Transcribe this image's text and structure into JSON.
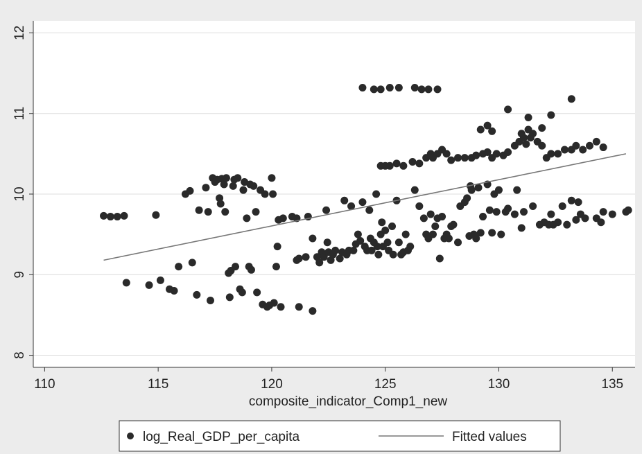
{
  "chart_data": {
    "type": "scatter",
    "title": "",
    "xlabel": "composite_indicator_Comp1_new",
    "ylabel": "",
    "xlim": [
      109.5,
      136
    ],
    "ylim": [
      7.85,
      12.15
    ],
    "xticks": [
      110,
      115,
      120,
      125,
      130,
      135
    ],
    "yticks": [
      8,
      9,
      10,
      11,
      12
    ],
    "grid": "horizontal",
    "legend_position": "bottom",
    "colors": {
      "points": "#2a2a2a",
      "fit_line": "#777777",
      "plot_bg": "#ffffff",
      "outer_bg": "#ececec",
      "grid": "#dcdcdc"
    },
    "series": [
      {
        "name": "log_Real_GDP_per_capita",
        "kind": "scatter",
        "points": [
          [
            112.6,
            9.73
          ],
          [
            112.9,
            9.72
          ],
          [
            113.2,
            9.72
          ],
          [
            113.5,
            9.73
          ],
          [
            113.6,
            8.9
          ],
          [
            114.6,
            8.87
          ],
          [
            114.9,
            9.74
          ],
          [
            115.1,
            8.93
          ],
          [
            115.5,
            8.82
          ],
          [
            115.7,
            8.8
          ],
          [
            115.9,
            9.1
          ],
          [
            116.2,
            10.0
          ],
          [
            116.4,
            10.04
          ],
          [
            116.5,
            9.15
          ],
          [
            116.7,
            8.75
          ],
          [
            116.8,
            9.8
          ],
          [
            117.1,
            10.08
          ],
          [
            117.2,
            9.78
          ],
          [
            117.3,
            8.68
          ],
          [
            117.4,
            10.2
          ],
          [
            117.5,
            10.15
          ],
          [
            117.6,
            10.18
          ],
          [
            117.7,
            9.95
          ],
          [
            117.75,
            9.88
          ],
          [
            117.8,
            10.19
          ],
          [
            117.9,
            10.12
          ],
          [
            117.95,
            9.78
          ],
          [
            118.0,
            10.2
          ],
          [
            118.1,
            9.02
          ],
          [
            118.15,
            8.72
          ],
          [
            118.2,
            9.05
          ],
          [
            118.3,
            10.1
          ],
          [
            118.35,
            10.18
          ],
          [
            118.4,
            9.1
          ],
          [
            118.5,
            10.2
          ],
          [
            118.6,
            8.82
          ],
          [
            118.7,
            8.78
          ],
          [
            118.75,
            10.05
          ],
          [
            118.8,
            10.15
          ],
          [
            118.9,
            9.7
          ],
          [
            119.0,
            9.1
          ],
          [
            119.05,
            10.12
          ],
          [
            119.1,
            9.06
          ],
          [
            119.2,
            10.1
          ],
          [
            119.3,
            9.78
          ],
          [
            119.35,
            8.78
          ],
          [
            119.5,
            10.05
          ],
          [
            119.6,
            8.63
          ],
          [
            119.7,
            10.0
          ],
          [
            119.8,
            8.6
          ],
          [
            119.9,
            8.62
          ],
          [
            120.0,
            10.2
          ],
          [
            120.05,
            10.0
          ],
          [
            120.1,
            8.65
          ],
          [
            120.2,
            9.1
          ],
          [
            120.25,
            9.35
          ],
          [
            120.3,
            9.68
          ],
          [
            120.4,
            8.6
          ],
          [
            120.5,
            9.7
          ],
          [
            120.9,
            9.72
          ],
          [
            121.1,
            9.18
          ],
          [
            121.2,
            9.2
          ],
          [
            121.1,
            9.7
          ],
          [
            121.2,
            8.6
          ],
          [
            121.5,
            9.22
          ],
          [
            121.6,
            9.72
          ],
          [
            121.8,
            8.55
          ],
          [
            121.8,
            9.45
          ],
          [
            122.0,
            9.22
          ],
          [
            122.1,
            9.15
          ],
          [
            122.2,
            9.28
          ],
          [
            122.3,
            9.22
          ],
          [
            122.4,
            9.8
          ],
          [
            122.45,
            9.4
          ],
          [
            122.5,
            9.28
          ],
          [
            122.6,
            9.18
          ],
          [
            122.7,
            9.25
          ],
          [
            122.8,
            9.3
          ],
          [
            123.0,
            9.2
          ],
          [
            123.1,
            9.28
          ],
          [
            123.2,
            9.92
          ],
          [
            123.3,
            9.25
          ],
          [
            123.4,
            9.3
          ],
          [
            123.5,
            9.85
          ],
          [
            123.6,
            9.3
          ],
          [
            123.7,
            9.38
          ],
          [
            123.8,
            9.5
          ],
          [
            123.9,
            9.42
          ],
          [
            124.0,
            9.9
          ],
          [
            124.1,
            9.35
          ],
          [
            124.2,
            9.3
          ],
          [
            124.3,
            9.8
          ],
          [
            124.35,
            9.45
          ],
          [
            124.4,
            9.3
          ],
          [
            124.5,
            9.4
          ],
          [
            124.6,
            10.0
          ],
          [
            124.65,
            9.35
          ],
          [
            124.7,
            9.25
          ],
          [
            124.8,
            9.5
          ],
          [
            124.85,
            9.65
          ],
          [
            124.9,
            9.35
          ],
          [
            125.0,
            9.55
          ],
          [
            125.1,
            9.4
          ],
          [
            125.15,
            9.3
          ],
          [
            125.3,
            9.6
          ],
          [
            125.35,
            9.25
          ],
          [
            125.5,
            9.92
          ],
          [
            125.6,
            9.4
          ],
          [
            125.7,
            9.25
          ],
          [
            125.8,
            9.28
          ],
          [
            125.9,
            9.5
          ],
          [
            126.0,
            9.3
          ],
          [
            126.1,
            9.35
          ],
          [
            126.3,
            10.05
          ],
          [
            126.5,
            9.85
          ],
          [
            126.7,
            9.7
          ],
          [
            126.8,
            9.5
          ],
          [
            126.9,
            9.45
          ],
          [
            127.0,
            9.75
          ],
          [
            127.1,
            9.5
          ],
          [
            127.2,
            9.6
          ],
          [
            127.3,
            9.7
          ],
          [
            127.4,
            9.2
          ],
          [
            127.5,
            9.72
          ],
          [
            127.6,
            9.45
          ],
          [
            127.7,
            9.5
          ],
          [
            127.8,
            9.45
          ],
          [
            127.9,
            9.6
          ],
          [
            128.0,
            9.62
          ],
          [
            128.2,
            9.4
          ],
          [
            128.3,
            9.85
          ],
          [
            128.5,
            9.9
          ],
          [
            128.6,
            9.95
          ],
          [
            128.7,
            9.48
          ],
          [
            128.75,
            10.1
          ],
          [
            128.8,
            10.05
          ],
          [
            128.9,
            9.5
          ],
          [
            129.0,
            9.45
          ],
          [
            129.1,
            10.08
          ],
          [
            129.2,
            9.52
          ],
          [
            129.3,
            9.72
          ],
          [
            129.5,
            10.12
          ],
          [
            129.6,
            9.8
          ],
          [
            129.7,
            9.52
          ],
          [
            129.8,
            10.0
          ],
          [
            129.9,
            9.78
          ],
          [
            130.0,
            10.05
          ],
          [
            130.1,
            9.5
          ],
          [
            130.3,
            9.78
          ],
          [
            130.4,
            9.82
          ],
          [
            130.7,
            9.75
          ],
          [
            130.8,
            10.05
          ],
          [
            131.0,
            9.58
          ],
          [
            131.1,
            9.78
          ],
          [
            131.5,
            9.85
          ],
          [
            131.8,
            9.62
          ],
          [
            132.0,
            9.65
          ],
          [
            132.2,
            9.62
          ],
          [
            132.3,
            9.75
          ],
          [
            132.4,
            9.62
          ],
          [
            132.6,
            9.65
          ],
          [
            132.8,
            9.85
          ],
          [
            133.0,
            9.62
          ],
          [
            133.2,
            9.92
          ],
          [
            133.4,
            9.68
          ],
          [
            133.5,
            9.9
          ],
          [
            133.6,
            9.75
          ],
          [
            133.8,
            9.7
          ],
          [
            134.3,
            9.7
          ],
          [
            134.5,
            9.65
          ],
          [
            134.6,
            9.78
          ],
          [
            135.0,
            9.75
          ],
          [
            135.6,
            9.78
          ],
          [
            135.7,
            9.8
          ],
          [
            124.8,
            10.35
          ],
          [
            125.0,
            10.35
          ],
          [
            125.2,
            10.35
          ],
          [
            125.5,
            10.38
          ],
          [
            125.8,
            10.35
          ],
          [
            126.2,
            10.4
          ],
          [
            126.5,
            10.38
          ],
          [
            126.8,
            10.45
          ],
          [
            127.0,
            10.5
          ],
          [
            127.1,
            10.45
          ],
          [
            127.3,
            10.5
          ],
          [
            127.5,
            10.55
          ],
          [
            127.7,
            10.5
          ],
          [
            127.9,
            10.42
          ],
          [
            128.2,
            10.45
          ],
          [
            128.5,
            10.45
          ],
          [
            128.8,
            10.45
          ],
          [
            129.0,
            10.48
          ],
          [
            129.3,
            10.5
          ],
          [
            129.5,
            10.52
          ],
          [
            129.7,
            10.45
          ],
          [
            129.9,
            10.5
          ],
          [
            130.2,
            10.48
          ],
          [
            130.4,
            10.52
          ],
          [
            130.7,
            10.6
          ],
          [
            130.9,
            10.65
          ],
          [
            131.0,
            10.75
          ],
          [
            131.1,
            10.7
          ],
          [
            131.2,
            10.62
          ],
          [
            131.3,
            10.8
          ],
          [
            131.4,
            10.7
          ],
          [
            131.5,
            10.75
          ],
          [
            131.7,
            10.65
          ],
          [
            131.9,
            10.6
          ],
          [
            132.1,
            10.45
          ],
          [
            132.3,
            10.5
          ],
          [
            132.6,
            10.5
          ],
          [
            132.9,
            10.55
          ],
          [
            133.2,
            10.55
          ],
          [
            133.4,
            10.6
          ],
          [
            133.7,
            10.55
          ],
          [
            134.0,
            10.6
          ],
          [
            134.3,
            10.65
          ],
          [
            134.6,
            10.58
          ],
          [
            124.0,
            11.32
          ],
          [
            124.5,
            11.3
          ],
          [
            124.8,
            11.3
          ],
          [
            125.2,
            11.32
          ],
          [
            125.6,
            11.32
          ],
          [
            126.3,
            11.32
          ],
          [
            126.6,
            11.3
          ],
          [
            126.9,
            11.3
          ],
          [
            127.3,
            11.3
          ],
          [
            129.2,
            10.8
          ],
          [
            129.5,
            10.85
          ],
          [
            129.7,
            10.78
          ],
          [
            130.4,
            11.05
          ],
          [
            131.3,
            10.95
          ],
          [
            132.3,
            10.98
          ],
          [
            133.2,
            11.18
          ],
          [
            131.9,
            10.82
          ]
        ]
      },
      {
        "name": "Fitted values",
        "kind": "line",
        "points": [
          [
            112.6,
            9.18
          ],
          [
            135.6,
            10.5
          ]
        ]
      }
    ]
  }
}
